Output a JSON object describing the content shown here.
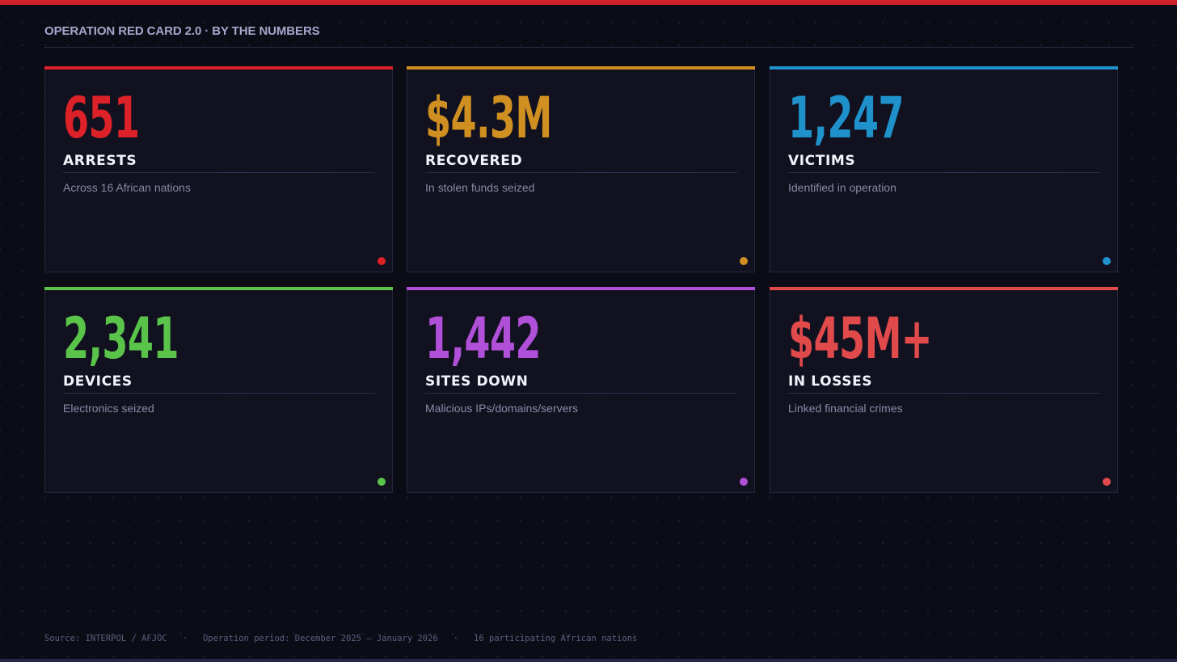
{
  "header": {
    "title": "OPERATION RED CARD 2.0 · BY THE NUMBERS"
  },
  "colors": {
    "top_bar": "#d0202a",
    "background": "#0c0c17",
    "card_background": "#11111f"
  },
  "cards": [
    {
      "value": "651",
      "label": "ARRESTS",
      "description": "Across 16 African nations",
      "color": "#dc2128"
    },
    {
      "value": "$4.3M",
      "label": "RECOVERED",
      "description": "In stolen funds seized",
      "color": "#d08f21"
    },
    {
      "value": "1,247",
      "label": "VICTIMS",
      "description": "Identified in operation",
      "color": "#1f92cc"
    },
    {
      "value": "2,341",
      "label": "DEVICES",
      "description": "Electronics seized",
      "color": "#5ac34a"
    },
    {
      "value": "1,442",
      "label": "SITES DOWN",
      "description": "Malicious IPs/domains/servers",
      "color": "#b04fd8"
    },
    {
      "value": "$45M+",
      "label": "IN LOSSES",
      "description": "Linked financial crimes",
      "color": "#e04a4a"
    }
  ],
  "footer": {
    "source": "Source: INTERPOL / AFJOC",
    "separator": "·",
    "period": "Operation period: December 2025 – January 2026",
    "nations": "16 participating African nations"
  }
}
